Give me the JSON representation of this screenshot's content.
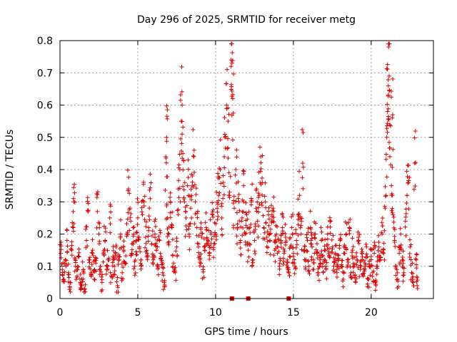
{
  "chart_data": {
    "type": "scatter",
    "title": "Day 296 of 2025, SRMTID for receiver metg",
    "xlabel": "GPS time / hours",
    "ylabel": "SRMTID / TECUs",
    "xlim": [
      0,
      24
    ],
    "ylim": [
      0,
      0.8
    ],
    "x_ticks": [
      "0",
      "5",
      "10",
      "15",
      "20"
    ],
    "y_ticks": [
      "0",
      "0.1",
      "0.2",
      "0.3",
      "0.4",
      "0.5",
      "0.6",
      "0.7",
      "0.8"
    ],
    "grid": true,
    "marker": "plus",
    "color": "#e00000",
    "series": [
      {
        "name": "SRMTID",
        "points": [
          [
            0.05,
            0.14
          ],
          [
            0.15,
            0.09
          ],
          [
            0.25,
            0.06
          ],
          [
            0.35,
            0.12
          ],
          [
            0.45,
            0.18
          ],
          [
            0.55,
            0.08
          ],
          [
            0.65,
            0.05
          ],
          [
            0.75,
            0.15
          ],
          [
            0.85,
            0.22
          ],
          [
            0.9,
            0.3
          ],
          [
            1.0,
            0.1
          ],
          [
            1.1,
            0.07
          ],
          [
            1.2,
            0.13
          ],
          [
            1.3,
            0.05
          ],
          [
            1.4,
            0.04
          ],
          [
            1.5,
            0.09
          ],
          [
            1.6,
            0.03
          ],
          [
            1.7,
            0.18
          ],
          [
            1.8,
            0.27
          ],
          [
            1.9,
            0.12
          ],
          [
            2.0,
            0.08
          ],
          [
            2.1,
            0.15
          ],
          [
            2.2,
            0.06
          ],
          [
            2.3,
            0.11
          ],
          [
            2.4,
            0.27
          ],
          [
            2.5,
            0.2
          ],
          [
            2.6,
            0.1
          ],
          [
            2.7,
            0.05
          ],
          [
            2.8,
            0.14
          ],
          [
            2.9,
            0.18
          ],
          [
            3.0,
            0.09
          ],
          [
            3.1,
            0.12
          ],
          [
            3.2,
            0.25
          ],
          [
            3.3,
            0.07
          ],
          [
            3.4,
            0.13
          ],
          [
            3.5,
            0.1
          ],
          [
            3.6,
            0.16
          ],
          [
            3.7,
            0.04
          ],
          [
            3.8,
            0.12
          ],
          [
            3.9,
            0.2
          ],
          [
            4.0,
            0.08
          ],
          [
            4.1,
            0.15
          ],
          [
            4.2,
            0.11
          ],
          [
            4.3,
            0.2
          ],
          [
            4.4,
            0.34
          ],
          [
            4.5,
            0.28
          ],
          [
            4.6,
            0.14
          ],
          [
            4.7,
            0.22
          ],
          [
            4.8,
            0.1
          ],
          [
            4.9,
            0.18
          ],
          [
            5.0,
            0.25
          ],
          [
            5.1,
            0.16
          ],
          [
            5.2,
            0.12
          ],
          [
            5.3,
            0.26
          ],
          [
            5.4,
            0.3
          ],
          [
            5.5,
            0.19
          ],
          [
            5.6,
            0.14
          ],
          [
            5.7,
            0.22
          ],
          [
            5.8,
            0.31
          ],
          [
            5.9,
            0.17
          ],
          [
            6.0,
            0.12
          ],
          [
            6.1,
            0.2
          ],
          [
            6.2,
            0.15
          ],
          [
            6.3,
            0.1
          ],
          [
            6.4,
            0.18
          ],
          [
            6.5,
            0.13
          ],
          [
            6.6,
            0.08
          ],
          [
            6.7,
            0.05
          ],
          [
            6.8,
            0.44
          ],
          [
            6.85,
            0.5
          ],
          [
            6.9,
            0.25
          ],
          [
            7.0,
            0.2
          ],
          [
            7.1,
            0.3
          ],
          [
            7.2,
            0.22
          ],
          [
            7.3,
            0.11
          ],
          [
            7.4,
            0.08
          ],
          [
            7.5,
            0.16
          ],
          [
            7.6,
            0.34
          ],
          [
            7.7,
            0.4
          ],
          [
            7.8,
            0.55
          ],
          [
            7.85,
            0.6
          ],
          [
            7.9,
            0.45
          ],
          [
            8.0,
            0.3
          ],
          [
            8.1,
            0.25
          ],
          [
            8.2,
            0.35
          ],
          [
            8.3,
            0.2
          ],
          [
            8.4,
            0.28
          ],
          [
            8.5,
            0.38
          ],
          [
            8.6,
            0.44
          ],
          [
            8.7,
            0.3
          ],
          [
            8.8,
            0.22
          ],
          [
            8.9,
            0.16
          ],
          [
            9.0,
            0.12
          ],
          [
            9.1,
            0.19
          ],
          [
            9.2,
            0.09
          ],
          [
            9.3,
            0.15
          ],
          [
            9.4,
            0.22
          ],
          [
            9.5,
            0.18
          ],
          [
            9.6,
            0.14
          ],
          [
            9.7,
            0.2
          ],
          [
            9.8,
            0.26
          ],
          [
            9.9,
            0.17
          ],
          [
            10.0,
            0.2
          ],
          [
            10.1,
            0.28
          ],
          [
            10.2,
            0.32
          ],
          [
            10.3,
            0.4
          ],
          [
            10.4,
            0.25
          ],
          [
            10.5,
            0.36
          ],
          [
            10.6,
            0.5
          ],
          [
            10.7,
            0.6
          ],
          [
            10.8,
            0.55
          ],
          [
            10.9,
            0.33
          ],
          [
            11.0,
            0.72
          ],
          [
            11.05,
            0.73
          ],
          [
            11.1,
            0.62
          ],
          [
            11.2,
            0.28
          ],
          [
            11.3,
            0.4
          ],
          [
            11.4,
            0.22
          ],
          [
            11.5,
            0.3
          ],
          [
            11.6,
            0.18
          ],
          [
            11.7,
            0.25
          ],
          [
            11.8,
            0.35
          ],
          [
            11.9,
            0.2
          ],
          [
            12.0,
            0.26
          ],
          [
            12.1,
            0.15
          ],
          [
            12.2,
            0.22
          ],
          [
            12.3,
            0.3
          ],
          [
            12.4,
            0.12
          ],
          [
            12.5,
            0.18
          ],
          [
            12.6,
            0.28
          ],
          [
            12.7,
            0.24
          ],
          [
            12.8,
            0.32
          ],
          [
            12.9,
            0.44
          ],
          [
            13.0,
            0.36
          ],
          [
            13.1,
            0.22
          ],
          [
            13.2,
            0.3
          ],
          [
            13.3,
            0.19
          ],
          [
            13.4,
            0.26
          ],
          [
            13.5,
            0.18
          ],
          [
            13.6,
            0.24
          ],
          [
            13.7,
            0.28
          ],
          [
            13.8,
            0.15
          ],
          [
            13.9,
            0.2
          ],
          [
            14.0,
            0.16
          ],
          [
            14.1,
            0.1
          ],
          [
            14.2,
            0.18
          ],
          [
            14.3,
            0.22
          ],
          [
            14.4,
            0.14
          ],
          [
            14.5,
            0.19
          ],
          [
            14.6,
            0.12
          ],
          [
            14.7,
            0.08
          ],
          [
            14.8,
            0.16
          ],
          [
            14.9,
            0.22
          ],
          [
            15.0,
            0.14
          ],
          [
            15.1,
            0.1
          ],
          [
            15.2,
            0.18
          ],
          [
            15.3,
            0.26
          ],
          [
            15.4,
            0.32
          ],
          [
            15.5,
            0.2
          ],
          [
            15.6,
            0.42
          ],
          [
            15.7,
            0.15
          ],
          [
            15.8,
            0.12
          ],
          [
            15.9,
            0.18
          ],
          [
            16.0,
            0.1
          ],
          [
            16.1,
            0.22
          ],
          [
            16.2,
            0.16
          ],
          [
            16.3,
            0.12
          ],
          [
            16.4,
            0.2
          ],
          [
            16.5,
            0.14
          ],
          [
            16.6,
            0.08
          ],
          [
            16.7,
            0.12
          ],
          [
            16.8,
            0.18
          ],
          [
            16.9,
            0.11
          ],
          [
            17.0,
            0.15
          ],
          [
            17.1,
            0.09
          ],
          [
            17.2,
            0.2
          ],
          [
            17.3,
            0.13
          ],
          [
            17.4,
            0.24
          ],
          [
            17.5,
            0.16
          ],
          [
            17.6,
            0.1
          ],
          [
            17.7,
            0.14
          ],
          [
            17.8,
            0.08
          ],
          [
            17.9,
            0.12
          ],
          [
            18.0,
            0.18
          ],
          [
            18.1,
            0.1
          ],
          [
            18.2,
            0.06
          ],
          [
            18.3,
            0.14
          ],
          [
            18.4,
            0.2
          ],
          [
            18.5,
            0.12
          ],
          [
            18.6,
            0.22
          ],
          [
            18.7,
            0.08
          ],
          [
            18.8,
            0.15
          ],
          [
            18.9,
            0.1
          ],
          [
            19.0,
            0.05
          ],
          [
            19.1,
            0.12
          ],
          [
            19.2,
            0.18
          ],
          [
            19.3,
            0.09
          ],
          [
            19.4,
            0.14
          ],
          [
            19.5,
            0.07
          ],
          [
            19.6,
            0.11
          ],
          [
            19.7,
            0.16
          ],
          [
            19.8,
            0.06
          ],
          [
            19.9,
            0.1
          ],
          [
            20.0,
            0.13
          ],
          [
            20.1,
            0.08
          ],
          [
            20.2,
            0.14
          ],
          [
            20.3,
            0.04
          ],
          [
            20.4,
            0.1
          ],
          [
            20.5,
            0.16
          ],
          [
            20.6,
            0.12
          ],
          [
            20.7,
            0.2
          ],
          [
            20.8,
            0.14
          ],
          [
            20.9,
            0.28
          ],
          [
            21.0,
            0.5
          ],
          [
            21.05,
            0.58
          ],
          [
            21.1,
            0.66
          ],
          [
            21.12,
            0.78
          ],
          [
            21.15,
            0.69
          ],
          [
            21.2,
            0.44
          ],
          [
            21.3,
            0.35
          ],
          [
            21.35,
            0.56
          ],
          [
            21.4,
            0.26
          ],
          [
            21.5,
            0.18
          ],
          [
            21.6,
            0.1
          ],
          [
            21.7,
            0.06
          ],
          [
            21.8,
            0.14
          ],
          [
            21.9,
            0.2
          ],
          [
            22.0,
            0.12
          ],
          [
            22.1,
            0.08
          ],
          [
            22.2,
            0.24
          ],
          [
            22.3,
            0.32
          ],
          [
            22.4,
            0.36
          ],
          [
            22.5,
            0.16
          ],
          [
            22.6,
            0.08
          ],
          [
            22.7,
            0.05
          ],
          [
            22.8,
            0.42
          ],
          [
            22.9,
            0.12
          ],
          [
            22.95,
            0.04
          ]
        ]
      }
    ],
    "markers_on_axis": [
      11.05,
      12.1,
      14.7
    ]
  }
}
